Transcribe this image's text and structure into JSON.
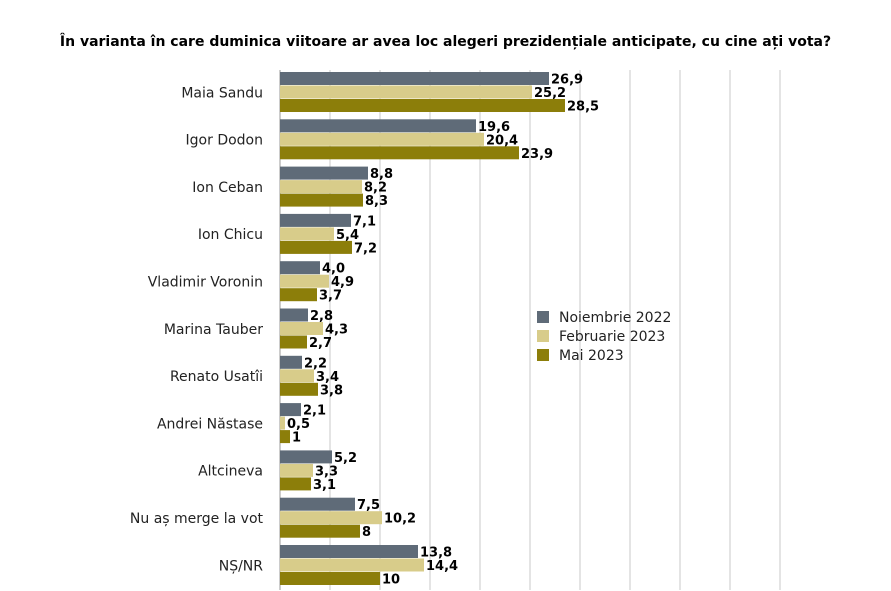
{
  "chart_data": {
    "type": "bar",
    "orientation": "horizontal",
    "title": "În varianta în care duminica viitoare ar avea loc alegeri prezidențiale anticipate, cu cine ați vota?",
    "categories": [
      "Maia Sandu",
      "Igor Dodon",
      "Ion Ceban",
      "Ion Chicu",
      "Vladimir Voronin",
      "Marina Tauber",
      "Renato Usatîi",
      "Andrei Năstase",
      "Altcineva",
      "Nu aș merge la vot",
      "NȘ/NR"
    ],
    "series": [
      {
        "name": "Noiembrie 2022",
        "color": "#5f6b78",
        "values": [
          26.9,
          19.6,
          8.8,
          7.1,
          4.0,
          2.8,
          2.2,
          2.1,
          5.2,
          7.5,
          13.8
        ],
        "labels": [
          "26,9",
          "19,6",
          "8,8",
          "7,1",
          "4,0",
          "2,8",
          "2,2",
          "2,1",
          "5,2",
          "7,5",
          "13,8"
        ]
      },
      {
        "name": "Februarie 2023",
        "color": "#d8cc8a",
        "values": [
          25.2,
          20.4,
          8.2,
          5.4,
          4.9,
          4.3,
          3.4,
          0.5,
          3.3,
          10.2,
          14.4
        ],
        "labels": [
          "25,2",
          "20,4",
          "8,2",
          "5,4",
          "4,9",
          "4,3",
          "3,4",
          "0,5",
          "3,3",
          "10,2",
          "14,4"
        ]
      },
      {
        "name": "Mai 2023",
        "color": "#8c7e0a",
        "values": [
          28.5,
          23.9,
          8.3,
          7.2,
          3.7,
          2.7,
          3.8,
          1,
          3.1,
          8,
          10
        ],
        "labels": [
          "28,5",
          "23,9",
          "8,3",
          "7,2",
          "3,7",
          "2,7",
          "3,8",
          "1",
          "3,1",
          "8",
          "10"
        ]
      }
    ],
    "xlim": [
      0,
      50
    ],
    "grid": true,
    "legend": "right"
  }
}
